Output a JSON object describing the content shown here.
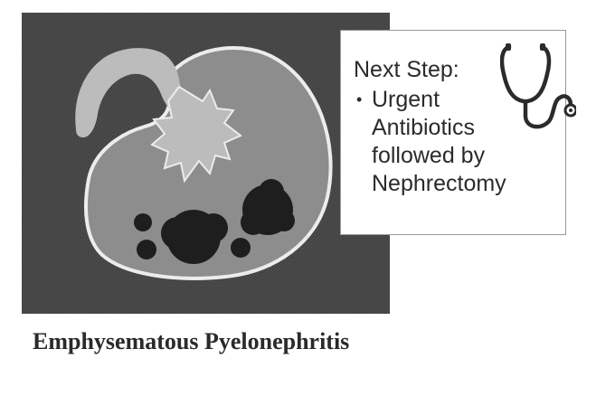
{
  "diagram": {
    "caption": "Emphysematous Pyelonephritis",
    "callout": {
      "heading": "Next Step:",
      "items": [
        "Urgent Antibiotics followed by Nephrectomy"
      ]
    },
    "icons": [
      "stethoscope-icon"
    ],
    "colors": {
      "background_panel": "#4a4a4a",
      "kidney_fill": "#8d8d8d",
      "kidney_outline": "#ececec",
      "collecting_system": "#bcbcbc",
      "gas_pockets": "#1e1e1e",
      "callout_border": "#9a9a9a",
      "text": "#2b2b2b"
    }
  }
}
